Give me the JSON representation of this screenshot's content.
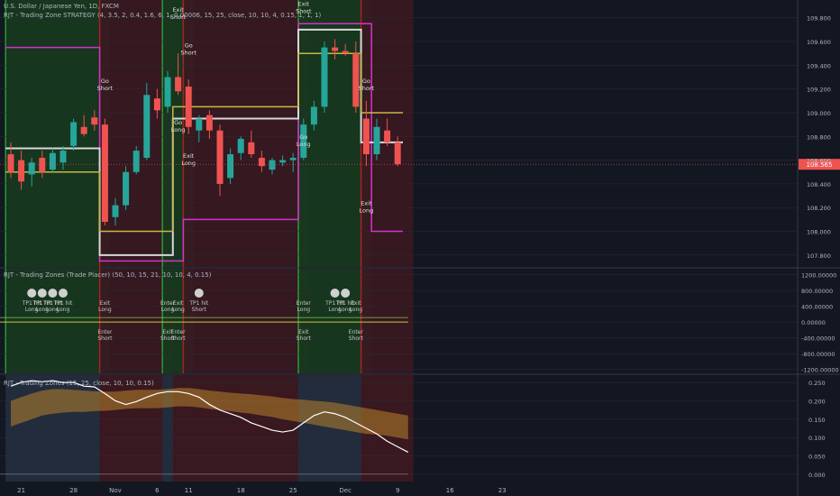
{
  "header": {
    "symbol_line": "U.S. Dollar / Japanese Yen, 1D, FXCM",
    "strategy_line": "RJT - Trading Zone STRATEGY (4, 3.5, 2, 0.4, 1.6, 6, 1, 0.00006, 15, 25, close, 10, 10, 4, 0.15, 1, 1, 1)",
    "placer_line": "RJT - Trading Zones (Trade Placer) (50, 10, 15, 21, 10, 10, 4, 0.15)",
    "zones_line": "RJT - Trading Zones (15, 25, close, 10, 10, 0.15)"
  },
  "colors": {
    "background": "#131722",
    "bull": "#26a69a",
    "bear": "#ef5350",
    "zone_green": "#1b5e20",
    "zone_red": "#7b1f2a",
    "magenta": "#d433c8",
    "yellow": "#c9b64a",
    "white_line": "#d8d8d8",
    "orange_band": "#b8832c",
    "price_tag": "#ef5350"
  },
  "chart_data": [
    {
      "type": "candlestick",
      "title": "U.S. Dollar / Japanese Yen, 1D, FXCM",
      "ylim": [
        107.7,
        109.95
      ],
      "yticks": [
        107.8,
        108.0,
        108.2,
        108.4,
        108.6,
        108.8,
        109.0,
        109.2,
        109.4,
        109.6,
        109.8
      ],
      "ytick_labels": [
        "107.800",
        "108.000",
        "108.200",
        "108.400",
        "108.600",
        "108.800",
        "109.000",
        "109.200",
        "109.400",
        "109.600",
        "109.800"
      ],
      "last_price_label": "108.565",
      "x_labels": [
        {
          "label": "21",
          "i": 1
        },
        {
          "label": "28",
          "i": 6
        },
        {
          "label": "Nov",
          "i": 10
        },
        {
          "label": "6",
          "i": 14
        },
        {
          "label": "11",
          "i": 17
        },
        {
          "label": "18",
          "i": 22
        },
        {
          "label": "25",
          "i": 27
        },
        {
          "label": "Dec",
          "i": 32
        },
        {
          "label": "9",
          "i": 37
        },
        {
          "label": "16",
          "i": 42
        },
        {
          "label": "23",
          "i": 47
        }
      ],
      "candles": [
        {
          "o": 108.65,
          "h": 108.75,
          "l": 108.45,
          "c": 108.5
        },
        {
          "o": 108.6,
          "h": 108.68,
          "l": 108.35,
          "c": 108.42
        },
        {
          "o": 108.48,
          "h": 108.62,
          "l": 108.38,
          "c": 108.58
        },
        {
          "o": 108.62,
          "h": 108.68,
          "l": 108.45,
          "c": 108.5
        },
        {
          "o": 108.52,
          "h": 108.7,
          "l": 108.5,
          "c": 108.66
        },
        {
          "o": 108.58,
          "h": 108.72,
          "l": 108.52,
          "c": 108.68
        },
        {
          "o": 108.72,
          "h": 108.95,
          "l": 108.68,
          "c": 108.92
        },
        {
          "o": 108.88,
          "h": 108.98,
          "l": 108.8,
          "c": 108.82
        },
        {
          "o": 108.96,
          "h": 109.02,
          "l": 108.85,
          "c": 108.9
        },
        {
          "o": 108.9,
          "h": 108.95,
          "l": 108.05,
          "c": 108.08
        },
        {
          "o": 108.12,
          "h": 108.28,
          "l": 108.05,
          "c": 108.22
        },
        {
          "o": 108.22,
          "h": 108.55,
          "l": 108.18,
          "c": 108.5
        },
        {
          "o": 108.5,
          "h": 108.72,
          "l": 108.48,
          "c": 108.68
        },
        {
          "o": 108.62,
          "h": 109.25,
          "l": 108.6,
          "c": 109.15
        },
        {
          "o": 109.12,
          "h": 109.2,
          "l": 108.95,
          "c": 109.02
        },
        {
          "o": 109.05,
          "h": 109.35,
          "l": 109.0,
          "c": 109.3
        },
        {
          "o": 109.3,
          "h": 109.5,
          "l": 109.15,
          "c": 109.18
        },
        {
          "o": 109.22,
          "h": 109.28,
          "l": 108.82,
          "c": 108.88
        },
        {
          "o": 108.85,
          "h": 108.98,
          "l": 108.75,
          "c": 108.95
        },
        {
          "o": 108.98,
          "h": 109.02,
          "l": 108.78,
          "c": 108.85
        },
        {
          "o": 108.85,
          "h": 108.9,
          "l": 108.3,
          "c": 108.4
        },
        {
          "o": 108.45,
          "h": 108.7,
          "l": 108.4,
          "c": 108.65
        },
        {
          "o": 108.66,
          "h": 108.8,
          "l": 108.6,
          "c": 108.78
        },
        {
          "o": 108.75,
          "h": 108.85,
          "l": 108.62,
          "c": 108.65
        },
        {
          "o": 108.62,
          "h": 108.68,
          "l": 108.5,
          "c": 108.55
        },
        {
          "o": 108.52,
          "h": 108.62,
          "l": 108.48,
          "c": 108.6
        },
        {
          "o": 108.58,
          "h": 108.64,
          "l": 108.55,
          "c": 108.6
        },
        {
          "o": 108.6,
          "h": 108.66,
          "l": 108.5,
          "c": 108.62
        },
        {
          "o": 108.62,
          "h": 108.95,
          "l": 108.6,
          "c": 108.9
        },
        {
          "o": 108.9,
          "h": 109.1,
          "l": 108.85,
          "c": 109.05
        },
        {
          "o": 109.05,
          "h": 109.6,
          "l": 109.0,
          "c": 109.55
        },
        {
          "o": 109.55,
          "h": 109.62,
          "l": 109.45,
          "c": 109.52
        },
        {
          "o": 109.52,
          "h": 109.58,
          "l": 109.48,
          "c": 109.5
        },
        {
          "o": 109.5,
          "h": 109.6,
          "l": 109.0,
          "c": 109.05
        },
        {
          "o": 108.95,
          "h": 109.1,
          "l": 108.55,
          "c": 108.65
        },
        {
          "o": 108.65,
          "h": 108.95,
          "l": 108.6,
          "c": 108.88
        },
        {
          "o": 108.85,
          "h": 108.95,
          "l": 108.72,
          "c": 108.75
        },
        {
          "o": 108.75,
          "h": 108.8,
          "l": 108.55,
          "c": 108.565
        }
      ],
      "series": [
        {
          "name": "magenta",
          "values": [
            109.55,
            109.55,
            109.55,
            109.55,
            109.55,
            109.55,
            109.55,
            109.55,
            109.55,
            107.75,
            107.75,
            107.75,
            107.75,
            107.75,
            107.75,
            107.75,
            107.75,
            108.1,
            108.1,
            108.1,
            108.1,
            108.1,
            108.1,
            108.1,
            108.1,
            108.1,
            108.1,
            108.1,
            109.75,
            109.75,
            109.75,
            109.75,
            109.75,
            109.75,
            109.75,
            108.0,
            108.0,
            108.0
          ]
        },
        {
          "name": "white",
          "values": [
            108.7,
            108.7,
            108.7,
            108.7,
            108.7,
            108.7,
            108.7,
            108.7,
            108.7,
            107.8,
            107.8,
            107.8,
            107.8,
            107.8,
            107.8,
            107.8,
            108.95,
            108.95,
            108.95,
            108.95,
            108.95,
            108.95,
            108.95,
            108.95,
            108.95,
            108.95,
            108.95,
            108.95,
            109.7,
            109.7,
            109.7,
            109.7,
            109.7,
            109.7,
            108.75,
            108.75,
            108.75,
            108.75
          ]
        },
        {
          "name": "yellow",
          "values": [
            108.5,
            108.5,
            108.5,
            108.5,
            108.5,
            108.5,
            108.5,
            108.5,
            108.5,
            108.0,
            108.0,
            108.0,
            108.0,
            108.0,
            108.0,
            108.0,
            109.05,
            109.05,
            109.05,
            109.05,
            109.05,
            109.05,
            109.05,
            109.05,
            109.05,
            109.05,
            109.05,
            109.05,
            109.5,
            109.5,
            109.5,
            109.5,
            109.5,
            109.5,
            109.0,
            109.0,
            109.0,
            109.0
          ]
        }
      ],
      "zones": [
        {
          "from": 0,
          "to": 9,
          "kind": "green"
        },
        {
          "from": 9,
          "to": 15,
          "kind": "red"
        },
        {
          "from": 15,
          "to": 17,
          "kind": "green"
        },
        {
          "from": 17,
          "to": 28,
          "kind": "red"
        },
        {
          "from": 28,
          "to": 34,
          "kind": "green"
        },
        {
          "from": 34,
          "to": 38,
          "kind": "red"
        }
      ],
      "annotations": [
        {
          "i": 9,
          "y": 109.25,
          "text": "Go Short"
        },
        {
          "i": 16,
          "y": 109.85,
          "text": "Exit Short"
        },
        {
          "i": 17,
          "y": 109.55,
          "text": "Go Short"
        },
        {
          "i": 16,
          "y": 108.9,
          "text": "Go Long"
        },
        {
          "i": 17,
          "y": 108.62,
          "text": "Exit Long"
        },
        {
          "i": 28,
          "y": 109.9,
          "text": "Exit Short"
        },
        {
          "i": 28,
          "y": 108.78,
          "text": "Go Long"
        },
        {
          "i": 34,
          "y": 109.25,
          "text": "Go Short"
        },
        {
          "i": 34,
          "y": 108.22,
          "text": "Exit Long"
        }
      ]
    },
    {
      "type": "line",
      "title": "RJT - Trading Zones (Trade Placer) (50, 10, 15, 21, 10, 10, 4, 0.15)",
      "ylim": [
        -1300,
        1350
      ],
      "yticks": [
        -1200,
        -800,
        -400,
        0,
        400,
        800,
        1200
      ],
      "ytick_labels": [
        "-1200.00000",
        "-800.00000",
        "-400.00000",
        "0.00000",
        "400.00000",
        "800.00000",
        "1200.00000"
      ],
      "labels": [
        {
          "i": 2,
          "text": "TP1 hit Long"
        },
        {
          "i": 3,
          "text": "TP1 hit Long"
        },
        {
          "i": 4,
          "text": "TP1 hit Long"
        },
        {
          "i": 5,
          "text": "TP1 hit Long"
        },
        {
          "i": 9,
          "text": "Exit Long"
        },
        {
          "i": 9,
          "text": "Enter Short"
        },
        {
          "i": 15,
          "text": "Enter Long"
        },
        {
          "i": 15,
          "text": "Exit Short"
        },
        {
          "i": 16,
          "text": "Exit Long"
        },
        {
          "i": 16,
          "text": "Enter Short"
        },
        {
          "i": 18,
          "text": "TP1 hit Short"
        },
        {
          "i": 28,
          "text": "Enter Long"
        },
        {
          "i": 28,
          "text": "Exit Short"
        },
        {
          "i": 31,
          "text": "TP1 hit Long"
        },
        {
          "i": 32,
          "text": "TP1 hit Long"
        },
        {
          "i": 33,
          "text": "Exit Long"
        },
        {
          "i": 33,
          "text": "Enter Short"
        }
      ]
    },
    {
      "type": "area",
      "title": "RJT - Trading Zones (15, 25, close, 10, 10, 0.15)",
      "ylim": [
        -0.02,
        0.27
      ],
      "yticks": [
        0.0,
        0.05,
        0.1,
        0.15,
        0.2,
        0.25
      ],
      "ytick_labels": [
        "0.000",
        "0.050",
        "0.100",
        "0.150",
        "0.200",
        "0.250"
      ],
      "series": [
        {
          "name": "white",
          "values": [
            0.24,
            0.25,
            0.255,
            0.252,
            0.255,
            0.25,
            0.25,
            0.24,
            0.238,
            0.22,
            0.2,
            0.19,
            0.198,
            0.21,
            0.22,
            0.225,
            0.225,
            0.22,
            0.21,
            0.19,
            0.175,
            0.165,
            0.155,
            0.14,
            0.13,
            0.12,
            0.115,
            0.12,
            0.14,
            0.16,
            0.17,
            0.165,
            0.155,
            0.14,
            0.125,
            0.11,
            0.09,
            0.075,
            0.06
          ]
        },
        {
          "name": "band_upper",
          "values": [
            0.2,
            0.21,
            0.22,
            0.228,
            0.232,
            0.232,
            0.23,
            0.228,
            0.226,
            0.225,
            0.225,
            0.228,
            0.23,
            0.23,
            0.23,
            0.232,
            0.235,
            0.235,
            0.232,
            0.228,
            0.225,
            0.222,
            0.22,
            0.218,
            0.215,
            0.212,
            0.208,
            0.205,
            0.203,
            0.2,
            0.198,
            0.195,
            0.19,
            0.185,
            0.18,
            0.175,
            0.17,
            0.165,
            0.16
          ]
        },
        {
          "name": "band_lower",
          "values": [
            0.13,
            0.14,
            0.15,
            0.16,
            0.165,
            0.168,
            0.17,
            0.17,
            0.172,
            0.173,
            0.175,
            0.178,
            0.18,
            0.18,
            0.18,
            0.182,
            0.185,
            0.185,
            0.182,
            0.178,
            0.175,
            0.172,
            0.168,
            0.165,
            0.16,
            0.156,
            0.15,
            0.145,
            0.14,
            0.135,
            0.13,
            0.125,
            0.12,
            0.115,
            0.11,
            0.108,
            0.105,
            0.1,
            0.095
          ]
        }
      ],
      "zones": [
        {
          "from": 0,
          "to": 9,
          "kind": "blue"
        },
        {
          "from": 9,
          "to": 15,
          "kind": "red"
        },
        {
          "from": 15,
          "to": 16,
          "kind": "blue"
        },
        {
          "from": 16,
          "to": 28,
          "kind": "red"
        },
        {
          "from": 28,
          "to": 34,
          "kind": "blue"
        },
        {
          "from": 34,
          "to": 38,
          "kind": "red"
        }
      ]
    }
  ]
}
